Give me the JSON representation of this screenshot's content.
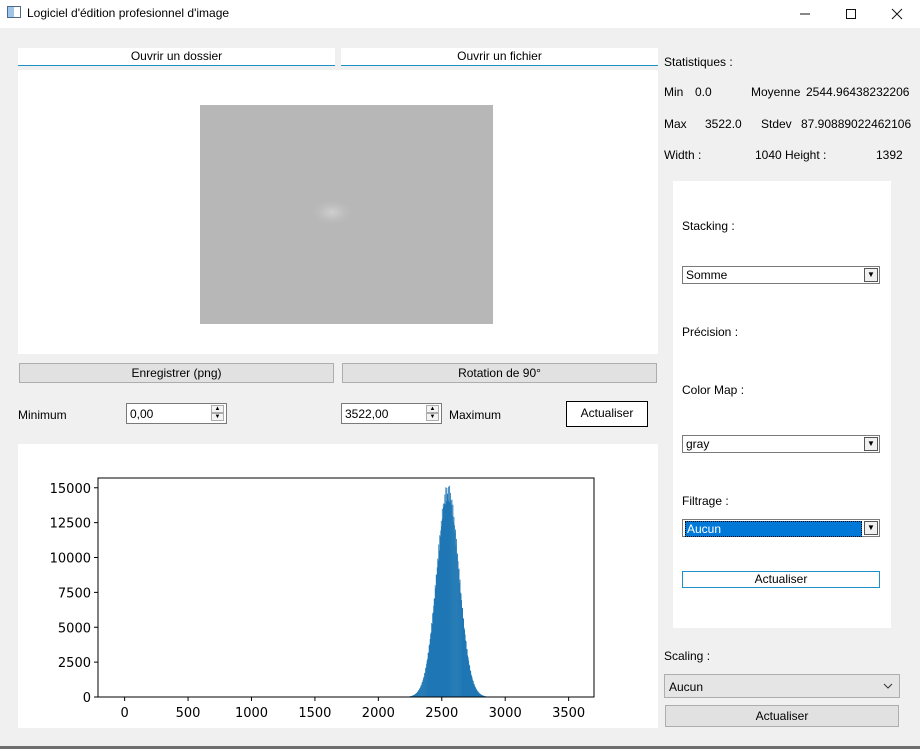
{
  "window": {
    "title": "Logiciel d'édition profesionnel d'image"
  },
  "top_buttons": {
    "open_folder": "Ouvrir un dossier",
    "open_file": "Ouvrir un fichier"
  },
  "actions": {
    "save": "Enregistrer (png)",
    "rotate": "Rotation de 90°"
  },
  "range": {
    "min_label": "Minimum",
    "min_value": "0,00",
    "max_value": "3522,00",
    "max_label": "Maximum",
    "update": "Actualiser"
  },
  "stats": {
    "title": "Statistiques :",
    "min_label": "Min",
    "min_value": "0.0",
    "mean_label": "Moyenne",
    "mean_value": "2544.96438232206",
    "max_label": "Max",
    "max_value": "3522.0",
    "stdev_label": "Stdev",
    "stdev_value": "87.90889022462106",
    "width_label": "Width :",
    "width_value": "1040",
    "height_label": "Height :",
    "height_value": "1392"
  },
  "panel": {
    "stacking_label": "Stacking :",
    "stacking_value": "Somme",
    "precision_label": "Précision :",
    "colormap_label": "Color Map :",
    "colormap_value": "gray",
    "filter_label": "Filtrage :",
    "filter_value": "Aucun",
    "update": "Actualiser"
  },
  "scaling": {
    "label": "Scaling :",
    "value": "Aucun",
    "update": "Actualiser"
  },
  "chart_data": {
    "type": "bar",
    "title": "",
    "xlabel": "",
    "ylabel": "",
    "xlim": [
      -210,
      3700
    ],
    "ylim": [
      0,
      15700
    ],
    "xticks": [
      0,
      500,
      1000,
      1500,
      2000,
      2500,
      3000,
      3500
    ],
    "yticks": [
      0,
      2500,
      5000,
      7500,
      10000,
      12500,
      15000
    ],
    "bar_color": "#1f77b4",
    "distribution": {
      "center": 2545,
      "sigma": 88,
      "peak": 14700
    },
    "range": [
      0,
      3522
    ]
  }
}
